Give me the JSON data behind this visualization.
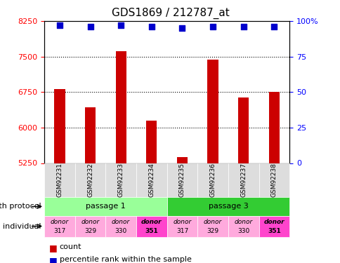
{
  "title": "GDS1869 / 212787_at",
  "samples": [
    "GSM92231",
    "GSM92232",
    "GSM92233",
    "GSM92234",
    "GSM92235",
    "GSM92236",
    "GSM92237",
    "GSM92238"
  ],
  "count_values": [
    6820,
    6430,
    7620,
    6140,
    5370,
    7430,
    6630,
    6750
  ],
  "percentile_values": [
    97,
    96,
    97,
    96,
    95,
    96,
    96,
    96
  ],
  "ylim_left": [
    5250,
    8250
  ],
  "ylim_right": [
    0,
    100
  ],
  "yticks_left": [
    5250,
    6000,
    6750,
    7500,
    8250
  ],
  "yticks_right": [
    0,
    25,
    50,
    75,
    100
  ],
  "bar_color": "#cc0000",
  "dot_color": "#0000cc",
  "passage1_color": "#99ff99",
  "passage3_color": "#33cc33",
  "donor_colors": [
    "#ffaadd",
    "#ffaadd",
    "#ffaadd",
    "#ff44cc",
    "#ffaadd",
    "#ffaadd",
    "#ffaadd",
    "#ff44cc"
  ],
  "donor_bold": [
    false,
    false,
    false,
    true,
    false,
    false,
    false,
    true
  ],
  "growth_protocol_label": "growth protocol",
  "individual_label": "individual",
  "passage_labels": [
    "passage 1",
    "passage 3"
  ],
  "legend_count_color": "#cc0000",
  "legend_pct_color": "#0000cc"
}
